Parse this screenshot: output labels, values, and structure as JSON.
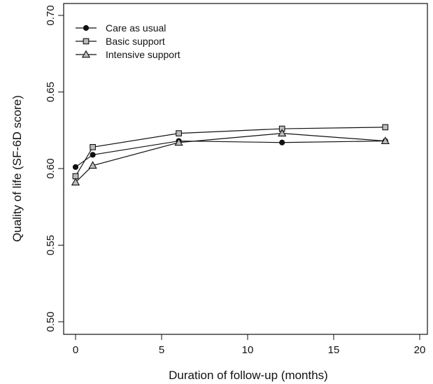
{
  "chart_data": {
    "type": "line",
    "title": "",
    "xlabel": "Duration of follow-up (months)",
    "ylabel": "Quality of life (SF-6D score)",
    "xlim": [
      0,
      20
    ],
    "ylim": [
      0.5,
      0.7
    ],
    "xticks": [
      "0",
      "5",
      "10",
      "15",
      "20"
    ],
    "yticks": [
      "0.50",
      "0.55",
      "0.60",
      "0.65",
      "0.70"
    ],
    "grid": false,
    "legend_position": "top-left",
    "series": [
      {
        "name": "Care as usual",
        "marker": "filled-circle",
        "x": [
          0,
          1,
          6,
          12,
          18
        ],
        "y": [
          0.601,
          0.609,
          0.618,
          0.617,
          0.618
        ]
      },
      {
        "name": "Basic support",
        "marker": "open-square",
        "x": [
          0,
          1,
          6,
          12,
          18
        ],
        "y": [
          0.595,
          0.614,
          0.623,
          0.626,
          0.627
        ]
      },
      {
        "name": "Intensive support",
        "marker": "open-triangle",
        "x": [
          0,
          1,
          6,
          12,
          18
        ],
        "y": [
          0.591,
          0.602,
          0.617,
          0.623,
          0.618
        ]
      }
    ],
    "colors": {
      "line": "#111111",
      "marker_fill_open": "#bbbbbb",
      "background": "#ffffff"
    }
  }
}
